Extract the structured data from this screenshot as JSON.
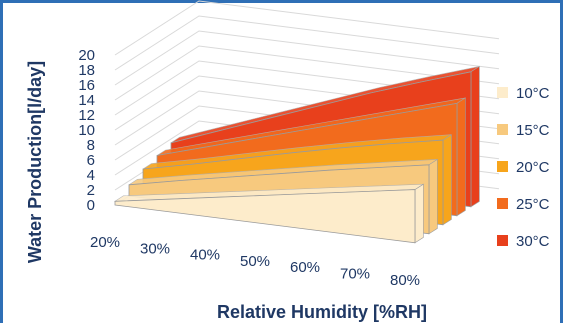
{
  "chart_data": {
    "type": "area",
    "title": "",
    "xlabel": "Relative Humidity [%RH]",
    "ylabel": "Water Production[l/day]",
    "x": [
      "20%",
      "30%",
      "40%",
      "50%",
      "60%",
      "70%",
      "80%"
    ],
    "y_ticks": [
      "0",
      "2",
      "4",
      "6",
      "8",
      "10",
      "12",
      "14",
      "16",
      "18",
      "20"
    ],
    "ylim": [
      0,
      20
    ],
    "grid": true,
    "legend_position": "right",
    "series": [
      {
        "name": "10°C",
        "color": "#fdeccb",
        "values": [
          0.5,
          1.6,
          2.7,
          3.8,
          4.9,
          6.0,
          7.1
        ]
      },
      {
        "name": "15°C",
        "color": "#f7c97e",
        "values": [
          1.5,
          2.9,
          4.2,
          5.5,
          6.8,
          8.0,
          9.2
        ]
      },
      {
        "name": "20°C",
        "color": "#f7a51c",
        "values": [
          2.4,
          3.9,
          5.5,
          7.1,
          8.6,
          10.0,
          11.3
        ]
      },
      {
        "name": "25°C",
        "color": "#f26b1d",
        "values": [
          3.0,
          5.0,
          7.0,
          9.0,
          11.0,
          13.0,
          15.0
        ]
      },
      {
        "name": "30°C",
        "color": "#e8401c",
        "values": [
          3.5,
          6.0,
          8.5,
          11.0,
          13.5,
          15.8,
          18.0
        ]
      }
    ]
  }
}
